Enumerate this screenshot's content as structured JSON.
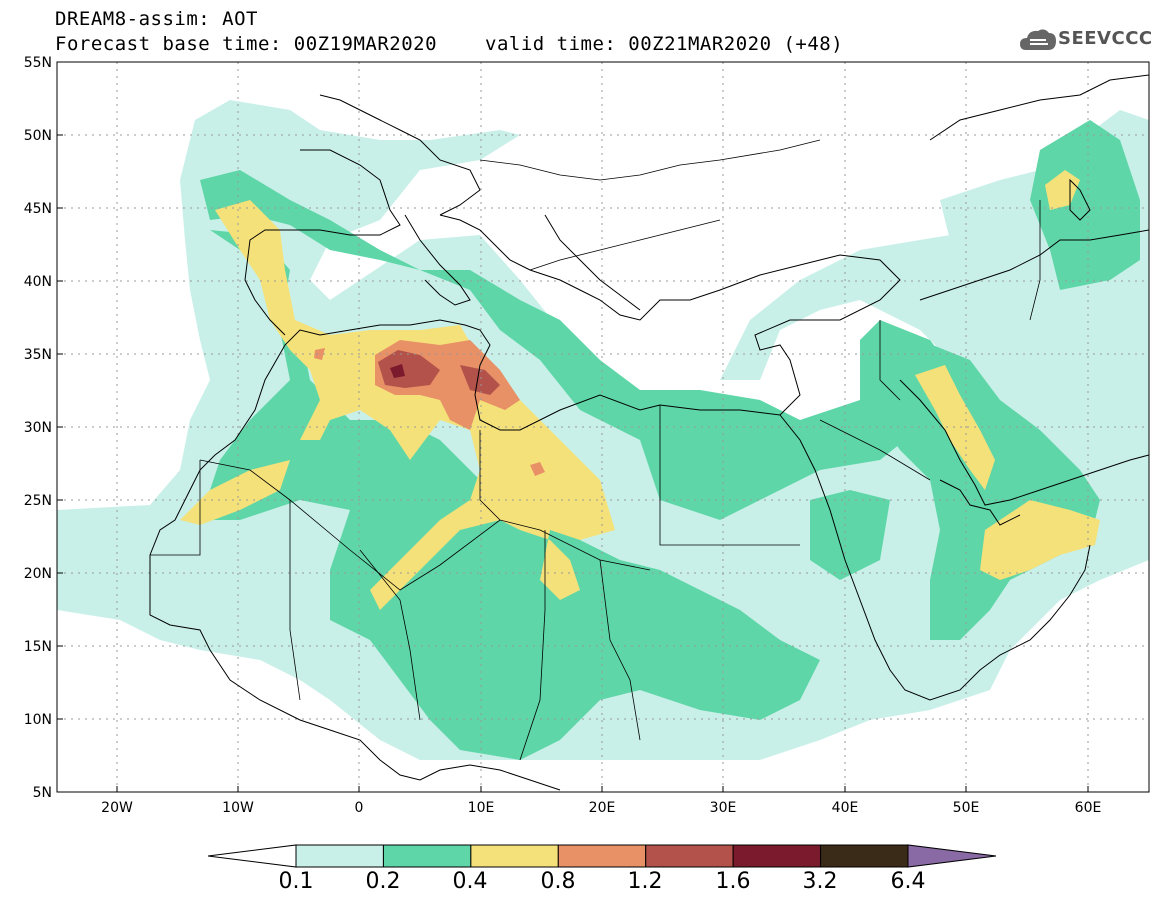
{
  "header": {
    "line1": "DREAM8-assim: AOT",
    "line2": "Forecast base time: 00Z19MAR2020",
    "valid": "valid time: 00Z21MAR2020 (+48)",
    "logo_text": "SEEVCCC"
  },
  "map": {
    "lon_range": [
      -25,
      65
    ],
    "lat_range": [
      5,
      55
    ],
    "lon_ticks": [
      "20W",
      "10W",
      "0",
      "10E",
      "20E",
      "30E",
      "40E",
      "50E",
      "60E"
    ],
    "lat_ticks": [
      "55N",
      "50N",
      "45N",
      "40N",
      "35N",
      "30N",
      "25N",
      "20N",
      "15N",
      "10N",
      "5N"
    ],
    "grid": true
  },
  "colorbar": {
    "levels": [
      "0.1",
      "0.2",
      "0.4",
      "0.8",
      "1.2",
      "1.6",
      "3.2",
      "6.4"
    ],
    "colors": [
      "#c8f0e8",
      "#5ed6a8",
      "#f5e17a",
      "#e89066",
      "#b2524a",
      "#7a1a2c",
      "#3a2a18",
      "#8a6aa4"
    ],
    "extend": "both"
  }
}
